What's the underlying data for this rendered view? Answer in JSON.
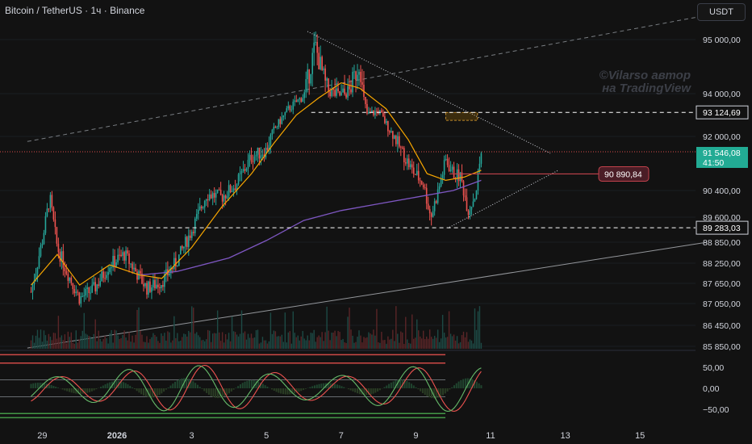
{
  "header": {
    "title": "Bitcoin / TetherUS · 1ч · Binance",
    "currency_button": "USDT"
  },
  "watermark": {
    "line1": "©Vilarso автор",
    "line2": "на TradingView"
  },
  "colors": {
    "background": "#121212",
    "up": "#26a69a",
    "down": "#ef5350",
    "ema_fast": "#f7a600",
    "ema_slow": "#7e57c2",
    "price_tag": "#22ab94",
    "marker_tag": "#4a1d26",
    "level_line": "#ffffff",
    "channel": "#9aa0a6"
  },
  "chart_data": [
    {
      "type": "candlestick",
      "symbol": "Bitcoin / TetherUS",
      "interval": "1ч",
      "exchange": "Binance",
      "x_axis": {
        "tick_labels": [
          "29",
          "2026",
          "3",
          "5",
          "7",
          "9",
          "11",
          "13",
          "15"
        ],
        "tick_days": [
          -2,
          0,
          2,
          4,
          6,
          8,
          10,
          12,
          14
        ]
      },
      "y_axis": {
        "tick_labels": [
          "95 000,00",
          "94 000,00",
          "92 000,00",
          "90 400,00",
          "89 600,00",
          "88 850,00",
          "88 250,00",
          "87 650,00",
          "87 050,00",
          "86 450,00",
          "85 850,00"
        ],
        "tick_values": [
          95000,
          94000,
          92000,
          90400,
          89600,
          88850,
          88250,
          87650,
          87050,
          86450,
          85850
        ],
        "scale": "log"
      },
      "price_path": [
        [
          -2.3,
          87400
        ],
        [
          -2.0,
          88900
        ],
        [
          -1.8,
          90200
        ],
        [
          -1.6,
          88700
        ],
        [
          -1.3,
          87900
        ],
        [
          -1.0,
          87200
        ],
        [
          -0.6,
          87500
        ],
        [
          -0.2,
          88200
        ],
        [
          0.2,
          88500
        ],
        [
          0.5,
          88000
        ],
        [
          0.8,
          87500
        ],
        [
          1.2,
          87700
        ],
        [
          1.6,
          88300
        ],
        [
          2.0,
          89200
        ],
        [
          2.4,
          90300
        ],
        [
          2.8,
          90200
        ],
        [
          3.2,
          90600
        ],
        [
          3.6,
          91400
        ],
        [
          4.0,
          91600
        ],
        [
          4.2,
          92300
        ],
        [
          4.6,
          93300
        ],
        [
          5.0,
          93900
        ],
        [
          5.3,
          94900
        ],
        [
          5.6,
          94100
        ],
        [
          5.9,
          93900
        ],
        [
          6.2,
          94000
        ],
        [
          6.5,
          94600
        ],
        [
          6.7,
          93000
        ],
        [
          7.0,
          93200
        ],
        [
          7.3,
          92300
        ],
        [
          7.6,
          91600
        ],
        [
          7.9,
          91000
        ],
        [
          8.2,
          90600
        ],
        [
          8.4,
          89600
        ],
        [
          8.6,
          90400
        ],
        [
          8.8,
          91300
        ],
        [
          9.0,
          90900
        ],
        [
          9.2,
          90800
        ],
        [
          9.4,
          89800
        ],
        [
          9.6,
          90300
        ],
        [
          9.75,
          91546
        ]
      ],
      "ema_fast": [
        [
          -2.3,
          87600
        ],
        [
          -1.6,
          88500
        ],
        [
          -1.0,
          87600
        ],
        [
          -0.2,
          88200
        ],
        [
          0.6,
          87900
        ],
        [
          1.2,
          87800
        ],
        [
          2.0,
          88700
        ],
        [
          2.8,
          89900
        ],
        [
          3.6,
          90900
        ],
        [
          4.2,
          91800
        ],
        [
          4.8,
          93000
        ],
        [
          5.4,
          93800
        ],
        [
          6.0,
          94200
        ],
        [
          6.5,
          94100
        ],
        [
          7.2,
          93300
        ],
        [
          7.8,
          91900
        ],
        [
          8.3,
          90900
        ],
        [
          8.8,
          90700
        ],
        [
          9.3,
          90800
        ],
        [
          9.75,
          91000
        ]
      ],
      "ema_slow": [
        [
          0.6,
          87900
        ],
        [
          1.6,
          88000
        ],
        [
          3.0,
          88400
        ],
        [
          4.0,
          88900
        ],
        [
          5.0,
          89500
        ],
        [
          6.0,
          89800
        ],
        [
          7.0,
          90000
        ],
        [
          8.0,
          90200
        ],
        [
          9.0,
          90400
        ],
        [
          9.75,
          90700
        ]
      ],
      "current_price": {
        "label": "91 546,08",
        "value": 91546.08,
        "countdown": "41:50"
      },
      "annotations": [
        {
          "type": "level",
          "label": "93 124,69",
          "value": 93124.69,
          "style": "dashed"
        },
        {
          "type": "level",
          "label": "89 283,03",
          "value": 89283.03,
          "style": "dashed"
        },
        {
          "type": "marker",
          "label": "90 890,84",
          "value": 90890.84
        },
        {
          "type": "triangle",
          "points": [
            [
              5.1,
              95150
            ],
            [
              8.9,
              89300
            ],
            [
              11.6,
              91500
            ]
          ]
        },
        {
          "type": "channel_upper",
          "points": [
            [
              -2.4,
              91850
            ],
            [
              15.8,
              95450
            ]
          ]
        },
        {
          "type": "channel_lower",
          "points": [
            [
              -2.4,
              85800
            ],
            [
              15.8,
              88850
            ]
          ]
        },
        {
          "type": "target_box",
          "days": [
            8.8,
            9.65
          ],
          "values": [
            92750,
            93120
          ]
        }
      ]
    },
    {
      "type": "line",
      "name": "oscillator",
      "y_axis": {
        "tick_labels": [
          "50,00",
          "0,00",
          "−50,00"
        ],
        "tick_values": [
          50,
          0,
          -50
        ]
      },
      "levels": [
        80,
        60,
        20,
        -20,
        -60,
        -70
      ],
      "values_note": "oscillator swings between about -60 and 60"
    }
  ]
}
